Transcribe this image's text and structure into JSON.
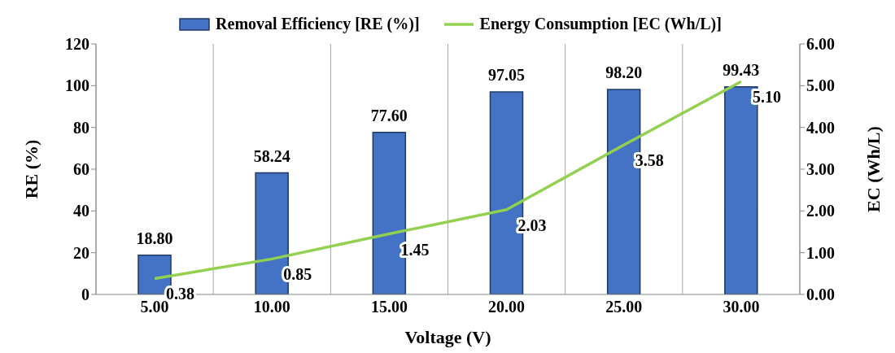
{
  "chart_data": {
    "type": "bar",
    "xlabel": "Voltage (V)",
    "ylabel": "RE (%)",
    "y2label": "EC (Wh/L)",
    "categories": [
      "5.00",
      "10.00",
      "15.00",
      "20.00",
      "25.00",
      "30.00"
    ],
    "series": [
      {
        "name": "Removal Efficiency [RE (%)]",
        "color": "#4472c4",
        "values": [
          18.8,
          58.24,
          77.6,
          97.05,
          98.2,
          99.43
        ],
        "value_labels": [
          "18.80",
          "58.24",
          "77.60",
          "97.05",
          "98.20",
          "99.43"
        ]
      },
      {
        "name": "Energy Consumption [EC (Wh/L)]",
        "type": "line",
        "axis": "y2",
        "color": "#92d050",
        "values": [
          0.38,
          0.85,
          1.45,
          2.03,
          3.58,
          5.1
        ],
        "value_labels": [
          "0.38",
          "0.85",
          "1.45",
          "2.03",
          "3.58",
          "5.10"
        ]
      }
    ],
    "ylim": [
      0,
      120
    ],
    "yticks": [
      0,
      20,
      40,
      60,
      80,
      100,
      120
    ],
    "y2lim": [
      0,
      6
    ],
    "y2ticks": [
      {
        "value": 0,
        "label": "0.00"
      },
      {
        "value": 1,
        "label": "1.00"
      },
      {
        "value": 2,
        "label": "2.00"
      },
      {
        "value": 3,
        "label": "3.00"
      },
      {
        "value": 4,
        "label": "4.00"
      },
      {
        "value": 5,
        "label": "5.00"
      },
      {
        "value": 6,
        "label": "6.00"
      }
    ],
    "grid": "x",
    "legend": "top",
    "marker": "none",
    "line_style": "solid"
  }
}
